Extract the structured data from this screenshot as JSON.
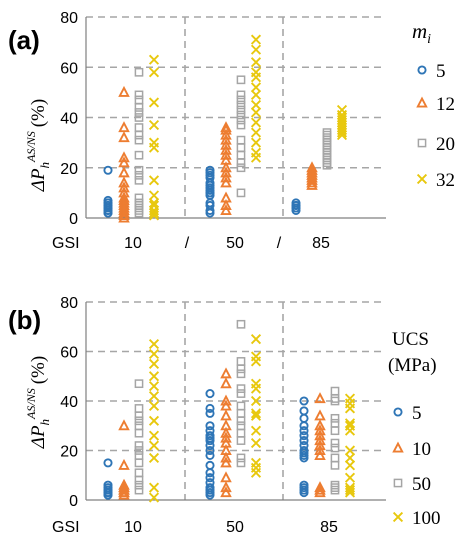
{
  "colors": {
    "mi_5": "#2e75b6",
    "mi_12": "#ed7d31",
    "mi_20": "#a5a5a5",
    "mi_32": "#e8c80e",
    "grid": "#a6a6a6",
    "axis": "#808080"
  },
  "chart_data": [
    {
      "type": "scatter",
      "panel_label": "(a)",
      "ylabel_main": "ΔP",
      "ylabel_sub": "h",
      "ylabel_sup": "AS/NS",
      "ylabel_unit": "(%)",
      "yticks": [
        "0",
        "20",
        "40",
        "60",
        "80"
      ],
      "ylim": [
        0,
        80
      ],
      "xaxis": {
        "prefix": "GSI",
        "groups": [
          "10",
          "50",
          "85"
        ],
        "separator": "/"
      },
      "legend": {
        "title_main": "m",
        "title_sub": "i",
        "placement": "right"
      },
      "grid": true,
      "series": [
        {
          "name": "5",
          "marker": "circle",
          "color_key": "mi_5",
          "points": [
            {
              "group": "10",
              "values": [
                19,
                7,
                6,
                6,
                5,
                5,
                4,
                4,
                3,
                3,
                2,
                2
              ]
            },
            {
              "group": "50",
              "values": [
                19,
                18,
                17,
                16,
                14,
                13,
                12,
                11,
                10,
                10,
                9,
                6,
                5,
                3,
                2
              ]
            },
            {
              "group": "85",
              "values": [
                6,
                5,
                5,
                4,
                4,
                3
              ]
            }
          ]
        },
        {
          "name": "12",
          "marker": "triangle",
          "color_key": "mi_12",
          "points": [
            {
              "group": "10",
              "values": [
                50,
                36,
                32,
                24,
                22,
                18,
                14,
                12,
                10,
                8,
                7,
                6,
                5,
                4,
                3,
                2,
                1,
                0
              ]
            },
            {
              "group": "50",
              "values": [
                36,
                35,
                33,
                31,
                29,
                27,
                25,
                23,
                20,
                18,
                16,
                14,
                8,
                5,
                3
              ]
            },
            {
              "group": "85",
              "values": [
                20,
                19,
                18,
                17,
                16,
                15,
                14,
                13
              ]
            }
          ]
        },
        {
          "name": "20",
          "marker": "square",
          "color_key": "mi_20",
          "points": [
            {
              "group": "10",
              "values": [
                58,
                49,
                47,
                44,
                42,
                40,
                36,
                33,
                31,
                25,
                19,
                17,
                15,
                8,
                6,
                5,
                4,
                3,
                2
              ]
            },
            {
              "group": "50",
              "values": [
                55,
                49,
                47,
                45,
                43,
                41,
                39,
                37,
                31,
                28,
                25,
                22,
                20,
                10
              ]
            },
            {
              "group": "85",
              "values": [
                34,
                33,
                32,
                31,
                30,
                29,
                28,
                27,
                26,
                25,
                24,
                23,
                22,
                21
              ]
            }
          ]
        },
        {
          "name": "32",
          "marker": "x",
          "color_key": "mi_32",
          "points": [
            {
              "group": "10",
              "values": [
                63,
                58,
                46,
                37,
                30,
                28,
                15,
                9,
                6,
                5,
                3,
                2,
                1
              ]
            },
            {
              "group": "50",
              "values": [
                71,
                67,
                62,
                58,
                56,
                52,
                49,
                45,
                42,
                38,
                34,
                30,
                26,
                24
              ]
            },
            {
              "group": "85",
              "values": [
                43,
                41,
                40,
                39,
                38,
                37,
                36,
                35,
                34,
                33
              ]
            }
          ]
        }
      ]
    },
    {
      "type": "scatter",
      "panel_label": "(b)",
      "ylabel_main": "ΔP",
      "ylabel_sub": "h",
      "ylabel_sup": "AS/NS",
      "ylabel_unit": "(%)",
      "yticks": [
        "0",
        "20",
        "40",
        "60",
        "80"
      ],
      "ylim": [
        0,
        80
      ],
      "xaxis": {
        "prefix": "GSI",
        "groups": [
          "10",
          "50",
          "85"
        ],
        "separator": ""
      },
      "legend": {
        "title_main": "UCS",
        "title_line2": "(MPa)",
        "placement": "right"
      },
      "grid": true,
      "series": [
        {
          "name": "5",
          "marker": "circle",
          "color_key": "mi_5",
          "points": [
            {
              "group": "10",
              "values": [
                15,
                6,
                5,
                4,
                4,
                3,
                3,
                2,
                2
              ]
            },
            {
              "group": "50",
              "values": [
                43,
                37,
                35,
                30,
                28,
                26,
                25,
                24,
                22,
                20,
                18,
                14,
                11,
                9,
                7,
                5,
                4,
                3,
                2
              ]
            },
            {
              "group": "85",
              "values": [
                40,
                36,
                33,
                30,
                28,
                26,
                24,
                22,
                20,
                19,
                18,
                17,
                6,
                5,
                4,
                3
              ]
            }
          ]
        },
        {
          "name": "10",
          "marker": "triangle",
          "color_key": "mi_10",
          "points": [
            {
              "group": "10",
              "values": [
                30,
                14,
                6,
                5,
                5,
                4,
                4,
                3,
                3,
                2
              ]
            },
            {
              "group": "50",
              "values": [
                51,
                47,
                40,
                38,
                34,
                30,
                27,
                25,
                23,
                20,
                17,
                15,
                9,
                5,
                3
              ]
            },
            {
              "group": "85",
              "values": [
                41,
                34,
                30,
                28,
                26,
                24,
                22,
                20,
                18,
                5,
                4,
                3
              ]
            }
          ]
        },
        {
          "name": "50",
          "marker": "square",
          "color_key": "mi_20",
          "points": [
            {
              "group": "10",
              "values": [
                47,
                37,
                34,
                32,
                30,
                27,
                22,
                20,
                18,
                15,
                11,
                8,
                6,
                4
              ]
            },
            {
              "group": "50",
              "values": [
                71,
                56,
                53,
                51,
                45,
                43,
                38,
                35,
                32,
                30,
                27,
                24,
                17,
                15
              ]
            },
            {
              "group": "85",
              "values": [
                44,
                41,
                40,
                33,
                31,
                28,
                23,
                21,
                17,
                14,
                6,
                5,
                4
              ]
            }
          ]
        },
        {
          "name": "100",
          "marker": "x",
          "color_key": "mi_32",
          "points": [
            {
              "group": "10",
              "values": [
                63,
                59,
                55,
                50,
                46,
                42,
                38,
                32,
                26,
                22,
                17,
                5,
                1
              ]
            },
            {
              "group": "50",
              "values": [
                65,
                58,
                56,
                47,
                45,
                40,
                35,
                34,
                28,
                23,
                15,
                13,
                11
              ]
            },
            {
              "group": "85",
              "values": [
                41,
                39,
                37,
                31,
                30,
                28,
                20,
                17,
                14,
                9,
                5,
                4,
                3
              ]
            }
          ]
        }
      ]
    }
  ]
}
